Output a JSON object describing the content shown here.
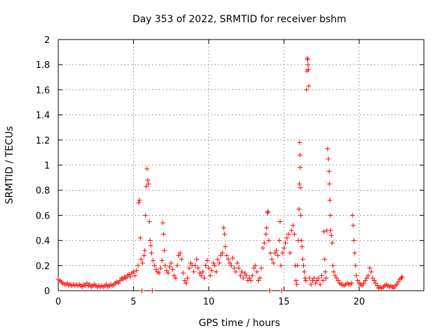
{
  "chart_data": {
    "type": "scatter",
    "title": "Day 353 of 2022, SRMTID for receiver bshm",
    "xlabel": "GPS time / hours",
    "ylabel": "SRMTID / TECUs",
    "xlim": [
      0,
      24.3
    ],
    "ylim": [
      0,
      2
    ],
    "x_ticks": [
      0,
      5,
      10,
      15,
      20
    ],
    "y_ticks": [
      0,
      0.2,
      0.4,
      0.6,
      0.8,
      1,
      1.2,
      1.4,
      1.6,
      1.8,
      2
    ],
    "grid": true,
    "marker": "+",
    "color": "#ff0000",
    "series": [
      {
        "name": "SRMTID",
        "points": [
          [
            0.0,
            0.09
          ],
          [
            0.1,
            0.08
          ],
          [
            0.2,
            0.07
          ],
          [
            0.3,
            0.06
          ],
          [
            0.4,
            0.05
          ],
          [
            0.5,
            0.05
          ],
          [
            0.6,
            0.06
          ],
          [
            0.7,
            0.04
          ],
          [
            0.8,
            0.05
          ],
          [
            0.9,
            0.04
          ],
          [
            1.0,
            0.05
          ],
          [
            1.1,
            0.04
          ],
          [
            1.2,
            0.05
          ],
          [
            1.3,
            0.04
          ],
          [
            1.4,
            0.05
          ],
          [
            1.5,
            0.04
          ],
          [
            1.6,
            0.03
          ],
          [
            1.7,
            0.05
          ],
          [
            1.8,
            0.04
          ],
          [
            1.9,
            0.06
          ],
          [
            2.0,
            0.04
          ],
          [
            2.1,
            0.05
          ],
          [
            2.2,
            0.03
          ],
          [
            2.3,
            0.04
          ],
          [
            2.4,
            0.05
          ],
          [
            2.5,
            0.04
          ],
          [
            2.6,
            0.03
          ],
          [
            2.7,
            0.04
          ],
          [
            2.8,
            0.03
          ],
          [
            2.9,
            0.04
          ],
          [
            3.0,
            0.03
          ],
          [
            3.1,
            0.04
          ],
          [
            3.2,
            0.05
          ],
          [
            3.3,
            0.03
          ],
          [
            3.4,
            0.04
          ],
          [
            3.5,
            0.05
          ],
          [
            3.6,
            0.04
          ],
          [
            3.7,
            0.05
          ],
          [
            3.8,
            0.06
          ],
          [
            3.9,
            0.07
          ],
          [
            4.0,
            0.06
          ],
          [
            4.1,
            0.08
          ],
          [
            4.2,
            0.1
          ],
          [
            4.3,
            0.09
          ],
          [
            4.4,
            0.11
          ],
          [
            4.5,
            0.1
          ],
          [
            4.6,
            0.12
          ],
          [
            4.7,
            0.13
          ],
          [
            4.8,
            0.11
          ],
          [
            4.9,
            0.14
          ],
          [
            5.0,
            0.15
          ],
          [
            5.1,
            0.12
          ],
          [
            5.2,
            0.16
          ],
          [
            5.3,
            0.2
          ],
          [
            5.35,
            0.7
          ],
          [
            5.4,
            0.72
          ],
          [
            5.45,
            0.42
          ],
          [
            5.5,
            0.25
          ],
          [
            5.55,
            0.0
          ],
          [
            5.6,
            0.22
          ],
          [
            5.7,
            0.28
          ],
          [
            5.75,
            0.32
          ],
          [
            5.8,
            0.6
          ],
          [
            5.85,
            0.83
          ],
          [
            5.9,
            0.97
          ],
          [
            5.95,
            0.88
          ],
          [
            6.0,
            0.85
          ],
          [
            6.05,
            0.55
          ],
          [
            6.1,
            0.4
          ],
          [
            6.15,
            0.36
          ],
          [
            6.2,
            0.3
          ],
          [
            6.25,
            0.0
          ],
          [
            6.3,
            0.24
          ],
          [
            6.4,
            0.2
          ],
          [
            6.5,
            0.17
          ],
          [
            6.6,
            0.15
          ],
          [
            6.7,
            0.14
          ],
          [
            6.8,
            0.18
          ],
          [
            6.9,
            0.24
          ],
          [
            6.95,
            0.54
          ],
          [
            7.0,
            0.45
          ],
          [
            7.05,
            0.32
          ],
          [
            7.1,
            0.2
          ],
          [
            7.2,
            0.16
          ],
          [
            7.3,
            0.14
          ],
          [
            7.4,
            0.19
          ],
          [
            7.5,
            0.22
          ],
          [
            7.6,
            0.17
          ],
          [
            7.7,
            0.12
          ],
          [
            7.8,
            0.1
          ],
          [
            7.9,
            0.2
          ],
          [
            8.0,
            0.28
          ],
          [
            8.1,
            0.3
          ],
          [
            8.2,
            0.25
          ],
          [
            8.3,
            0.14
          ],
          [
            8.4,
            0.08
          ],
          [
            8.5,
            0.06
          ],
          [
            8.6,
            0.1
          ],
          [
            8.7,
            0.18
          ],
          [
            8.8,
            0.22
          ],
          [
            8.9,
            0.2
          ],
          [
            9.0,
            0.15
          ],
          [
            9.1,
            0.2
          ],
          [
            9.2,
            0.25
          ],
          [
            9.3,
            0.18
          ],
          [
            9.4,
            0.14
          ],
          [
            9.5,
            0.12
          ],
          [
            9.6,
            0.15
          ],
          [
            9.7,
            0.1
          ],
          [
            9.8,
            0.2
          ],
          [
            9.9,
            0.24
          ],
          [
            10.0,
            0.18
          ],
          [
            10.1,
            0.12
          ],
          [
            10.2,
            0.16
          ],
          [
            10.3,
            0.22
          ],
          [
            10.4,
            0.2
          ],
          [
            10.5,
            0.15
          ],
          [
            10.6,
            0.25
          ],
          [
            10.7,
            0.22
          ],
          [
            10.8,
            0.28
          ],
          [
            10.9,
            0.3
          ],
          [
            11.0,
            0.5
          ],
          [
            11.05,
            0.45
          ],
          [
            11.1,
            0.35
          ],
          [
            11.2,
            0.28
          ],
          [
            11.3,
            0.25
          ],
          [
            11.4,
            0.22
          ],
          [
            11.5,
            0.2
          ],
          [
            11.6,
            0.26
          ],
          [
            11.7,
            0.18
          ],
          [
            11.8,
            0.15
          ],
          [
            11.9,
            0.22
          ],
          [
            12.0,
            0.18
          ],
          [
            12.1,
            0.12
          ],
          [
            12.2,
            0.15
          ],
          [
            12.3,
            0.1
          ],
          [
            12.4,
            0.14
          ],
          [
            12.5,
            0.12
          ],
          [
            12.6,
            0.08
          ],
          [
            12.7,
            0.1
          ],
          [
            12.8,
            0.08
          ],
          [
            12.9,
            0.12
          ],
          [
            13.0,
            0.18
          ],
          [
            13.1,
            0.2
          ],
          [
            13.2,
            0.15
          ],
          [
            13.3,
            0.08
          ],
          [
            13.4,
            0.1
          ],
          [
            13.5,
            0.18
          ],
          [
            13.6,
            0.34
          ],
          [
            13.7,
            0.38
          ],
          [
            13.8,
            0.45
          ],
          [
            13.85,
            0.5
          ],
          [
            13.9,
            0.62
          ],
          [
            13.95,
            0.63
          ],
          [
            14.0,
            0.4
          ],
          [
            14.05,
            0.0
          ],
          [
            14.1,
            0.3
          ],
          [
            14.2,
            0.25
          ],
          [
            14.3,
            0.22
          ],
          [
            14.4,
            0.3
          ],
          [
            14.5,
            0.32
          ],
          [
            14.6,
            0.28
          ],
          [
            14.7,
            0.4
          ],
          [
            14.75,
            0.55
          ],
          [
            14.8,
            0.2
          ],
          [
            14.85,
            0.0
          ],
          [
            14.9,
            0.3
          ],
          [
            15.0,
            0.34
          ],
          [
            15.1,
            0.38
          ],
          [
            15.2,
            0.42
          ],
          [
            15.3,
            0.45
          ],
          [
            15.4,
            0.3
          ],
          [
            15.5,
            0.48
          ],
          [
            15.6,
            0.52
          ],
          [
            15.7,
            0.45
          ],
          [
            15.75,
            0.2
          ],
          [
            15.8,
            0.08
          ],
          [
            15.85,
            0.05
          ],
          [
            15.9,
            0.2
          ],
          [
            15.95,
            0.4
          ],
          [
            16.0,
            0.65
          ],
          [
            16.02,
            0.85
          ],
          [
            16.04,
            1.18
          ],
          [
            16.06,
            1.08
          ],
          [
            16.08,
            0.98
          ],
          [
            16.1,
            0.82
          ],
          [
            16.12,
            0.6
          ],
          [
            16.15,
            0.4
          ],
          [
            16.2,
            0.35
          ],
          [
            16.25,
            0.25
          ],
          [
            16.3,
            0.2
          ],
          [
            16.35,
            0.15
          ],
          [
            16.4,
            0.1
          ],
          [
            16.45,
            0.08
          ],
          [
            16.5,
            1.6
          ],
          [
            16.52,
            1.75
          ],
          [
            16.55,
            1.85
          ],
          [
            16.58,
            1.84
          ],
          [
            16.6,
            1.8
          ],
          [
            16.62,
            1.76
          ],
          [
            16.65,
            1.63
          ],
          [
            16.7,
            0.1
          ],
          [
            16.8,
            0.05
          ],
          [
            16.9,
            0.08
          ],
          [
            17.0,
            0.1
          ],
          [
            17.1,
            0.06
          ],
          [
            17.2,
            0.08
          ],
          [
            17.3,
            0.1
          ],
          [
            17.4,
            0.05
          ],
          [
            17.5,
            0.12
          ],
          [
            17.6,
            0.08
          ],
          [
            17.65,
            0.47
          ],
          [
            17.7,
            0.25
          ],
          [
            17.75,
            0.15
          ],
          [
            17.8,
            0.1
          ],
          [
            17.85,
            0.48
          ],
          [
            17.9,
            1.13
          ],
          [
            17.95,
            1.05
          ],
          [
            18.0,
            0.95
          ],
          [
            18.02,
            0.85
          ],
          [
            18.05,
            0.72
          ],
          [
            18.08,
            0.6
          ],
          [
            18.1,
            0.48
          ],
          [
            18.15,
            0.44
          ],
          [
            18.2,
            0.38
          ],
          [
            18.25,
            0.2
          ],
          [
            18.3,
            0.15
          ],
          [
            18.4,
            0.12
          ],
          [
            18.5,
            0.1
          ],
          [
            18.6,
            0.08
          ],
          [
            18.7,
            0.06
          ],
          [
            18.8,
            0.05
          ],
          [
            18.9,
            0.05
          ],
          [
            19.0,
            0.04
          ],
          [
            19.1,
            0.05
          ],
          [
            19.2,
            0.06
          ],
          [
            19.3,
            0.05
          ],
          [
            19.4,
            0.05
          ],
          [
            19.5,
            0.06
          ],
          [
            19.55,
            0.6
          ],
          [
            19.6,
            0.52
          ],
          [
            19.65,
            0.4
          ],
          [
            19.7,
            0.3
          ],
          [
            19.75,
            0.2
          ],
          [
            19.8,
            0.12
          ],
          [
            19.9,
            0.08
          ],
          [
            20.0,
            0.06
          ],
          [
            20.1,
            0.05
          ],
          [
            20.2,
            0.04
          ],
          [
            20.3,
            0.06
          ],
          [
            20.4,
            0.08
          ],
          [
            20.5,
            0.1
          ],
          [
            20.6,
            0.12
          ],
          [
            20.7,
            0.18
          ],
          [
            20.8,
            0.15
          ],
          [
            20.9,
            0.1
          ],
          [
            21.0,
            0.08
          ],
          [
            21.1,
            0.06
          ],
          [
            21.2,
            0.04
          ],
          [
            21.3,
            0.02
          ],
          [
            21.4,
            0.03
          ],
          [
            21.5,
            0.02
          ],
          [
            21.6,
            0.03
          ],
          [
            21.7,
            0.04
          ],
          [
            21.8,
            0.05
          ],
          [
            21.9,
            0.04
          ],
          [
            22.0,
            0.03
          ],
          [
            22.1,
            0.04
          ],
          [
            22.2,
            0.03
          ],
          [
            22.3,
            0.02
          ],
          [
            22.4,
            0.04
          ],
          [
            22.5,
            0.05
          ],
          [
            22.6,
            0.07
          ],
          [
            22.7,
            0.09
          ],
          [
            22.8,
            0.1
          ],
          [
            22.85,
            0.11
          ]
        ]
      }
    ]
  }
}
